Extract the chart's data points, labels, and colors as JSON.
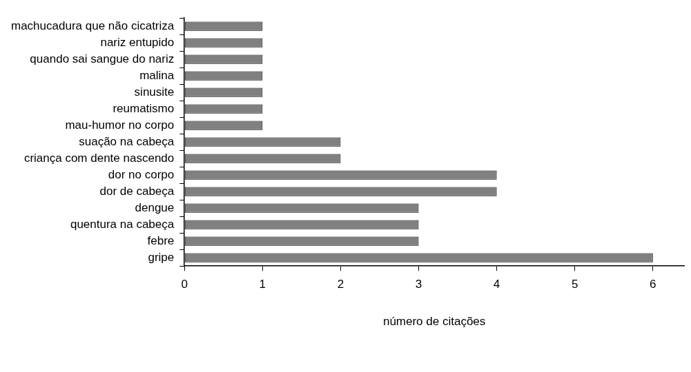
{
  "chart_data": {
    "type": "bar",
    "orientation": "horizontal",
    "xlabel": "número de citações",
    "categories": [
      "machucadura que não cicatriza",
      "nariz entupido",
      "quando sai sangue do nariz",
      "malina",
      "sinusite",
      "reumatismo",
      "mau-humor no corpo",
      "suação na cabeça",
      "criança com dente nascendo",
      "dor no corpo",
      "dor de cabeça",
      "dengue",
      "quentura na cabeça",
      "febre",
      "gripe"
    ],
    "values": [
      1,
      1,
      1,
      1,
      1,
      1,
      1,
      2,
      2,
      4,
      4,
      3,
      3,
      3,
      6
    ],
    "color": "#808080",
    "xlim": [
      0,
      6.4
    ],
    "xticks": [
      0,
      1,
      2,
      3,
      4,
      5,
      6
    ],
    "grid": false,
    "legend": false
  }
}
